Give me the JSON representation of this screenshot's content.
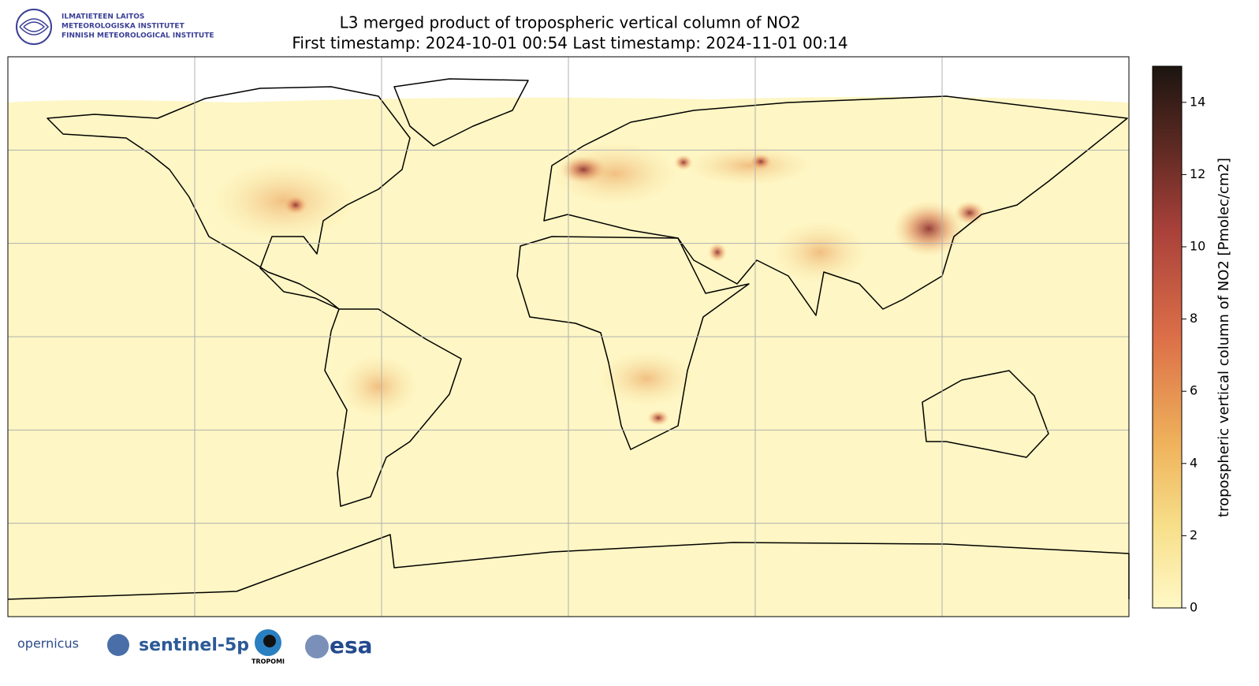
{
  "header": {
    "institute": [
      "ILMATIETEEN LAITOS",
      "METEOROLOGISKA INSTITUTET",
      "FINNISH METEOROLOGICAL INSTITUTE"
    ],
    "title": "L3 merged product of tropospheric vertical column of NO2",
    "subtitle": "First timestamp: 2024-10-01 00:54   Last timestamp: 2024-11-01 00:14"
  },
  "map": {
    "lon_lim": [
      -180,
      180
    ],
    "lat_lim": [
      -90,
      90
    ],
    "lon_grid": [
      -120,
      -60,
      0,
      60,
      120
    ],
    "lat_grid": [
      60,
      30,
      0,
      -30,
      -60
    ]
  },
  "colorbar": {
    "label": "tropospheric vertical column of NO2 [Pmolec/cm2]",
    "lim": [
      0,
      15
    ],
    "ticks": [
      0,
      2,
      4,
      6,
      8,
      10,
      12,
      14
    ]
  },
  "footer": {
    "logos": [
      "opernicus",
      "sentinel-5p",
      "TROPOMI",
      "esa"
    ]
  }
}
